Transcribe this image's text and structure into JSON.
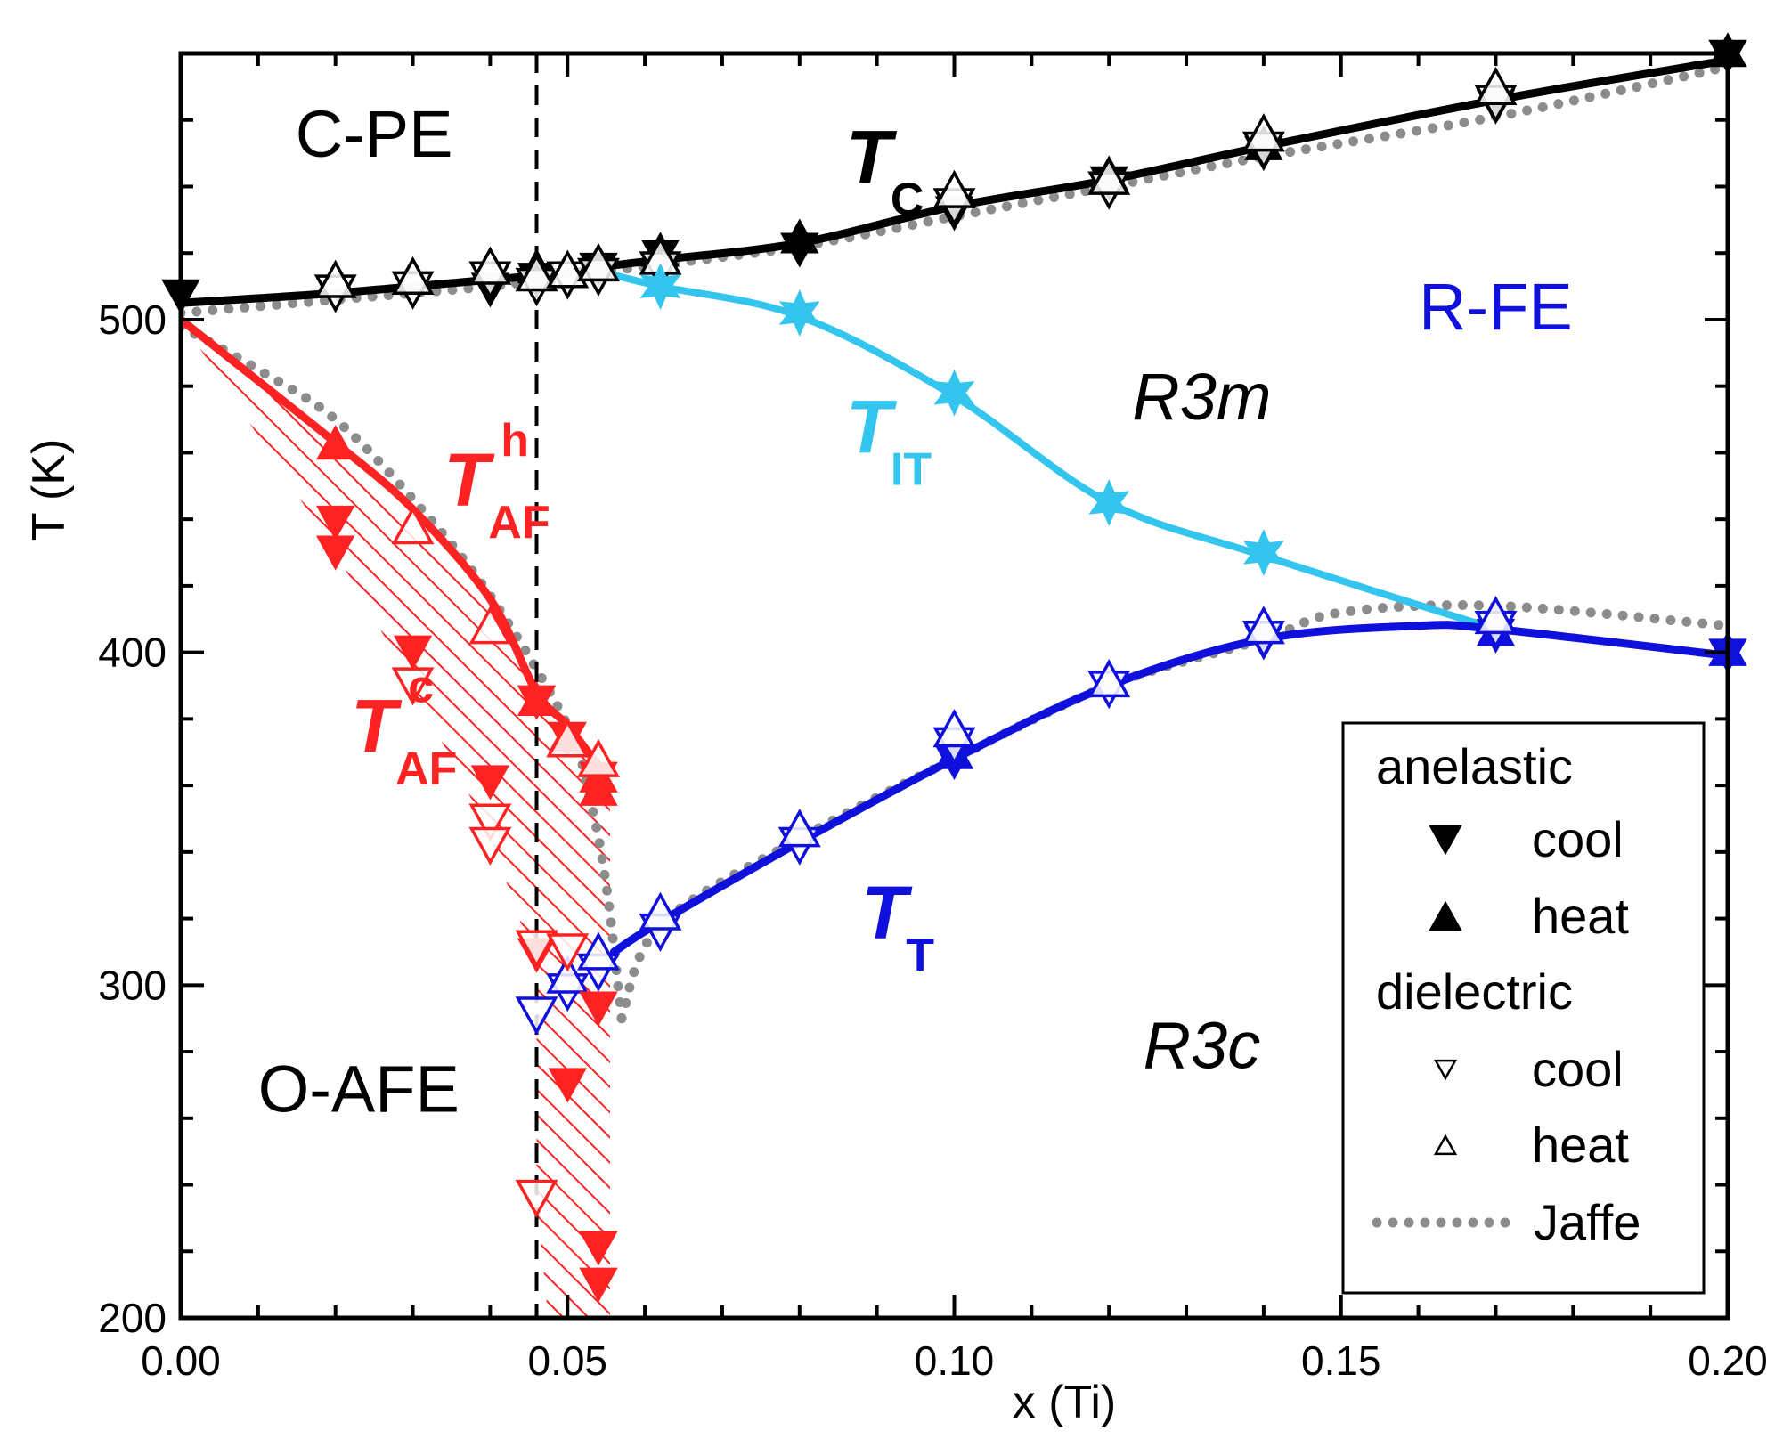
{
  "chart_data": {
    "type": "scatter",
    "xlabel": "x (Ti)",
    "ylabel": "T (K)",
    "xlim": [
      0.0,
      0.2
    ],
    "ylim": [
      200,
      580
    ],
    "x_ticks": [
      "0.00",
      "0.05",
      "0.10",
      "0.15",
      "0.20"
    ],
    "y_ticks": [
      "200",
      "300",
      "400",
      "500"
    ],
    "vline_x": 0.046,
    "regions": [
      {
        "text": "C-PE",
        "x": 0.025,
        "y": 549,
        "color": "#000000",
        "italic": false
      },
      {
        "text": "R-FE",
        "x": 0.17,
        "y": 497,
        "color": "#1010dd",
        "italic": false
      },
      {
        "text": "R3m",
        "x": 0.132,
        "y": 470,
        "color": "#000000",
        "italic": true
      },
      {
        "text": "R3c",
        "x": 0.132,
        "y": 275,
        "color": "#000000",
        "italic": true
      },
      {
        "text": "O-AFE",
        "x": 0.023,
        "y": 262,
        "color": "#000000",
        "italic": false
      }
    ],
    "curve_labels": [
      {
        "main": "T",
        "sub": "C",
        "sup": "",
        "x": 0.086,
        "y": 541,
        "color": "#000000"
      },
      {
        "main": "T",
        "sub": "IT",
        "sup": "",
        "x": 0.086,
        "y": 460,
        "color": "#33c5ee"
      },
      {
        "main": "T",
        "sub": "T",
        "sup": "",
        "x": 0.088,
        "y": 314,
        "color": "#1010dd"
      },
      {
        "main": "T",
        "sub": "AF",
        "sup": "h",
        "x": 0.034,
        "y": 444,
        "color": "#ff2222"
      },
      {
        "main": "T",
        "sub": "AF",
        "sup": "c",
        "x": 0.022,
        "y": 370,
        "color": "#ff2222"
      }
    ],
    "series": [
      {
        "key": "Tc",
        "color": "#000000",
        "line": [
          [
            0.0,
            505
          ],
          [
            0.02,
            508
          ],
          [
            0.04,
            512
          ],
          [
            0.05,
            514
          ],
          [
            0.055,
            516
          ],
          [
            0.062,
            518
          ],
          [
            0.08,
            523
          ],
          [
            0.1,
            534
          ],
          [
            0.12,
            542
          ],
          [
            0.14,
            552
          ],
          [
            0.17,
            566
          ],
          [
            0.2,
            578
          ]
        ],
        "an_cool": [
          [
            0.0,
            507
          ],
          [
            0.04,
            509
          ],
          [
            0.046,
            512
          ],
          [
            0.054,
            515
          ],
          [
            0.062,
            519
          ],
          [
            0.08,
            521
          ],
          [
            0.1,
            532
          ],
          [
            0.12,
            541
          ],
          [
            0.14,
            550
          ],
          [
            0.17,
            564
          ],
          [
            0.2,
            579
          ]
        ],
        "an_heat": [
          [
            0.046,
            516
          ],
          [
            0.062,
            521
          ],
          [
            0.08,
            525
          ],
          [
            0.12,
            544
          ],
          [
            0.14,
            553
          ],
          [
            0.2,
            581
          ]
        ],
        "di_cool": [
          [
            0.02,
            508
          ],
          [
            0.03,
            509
          ],
          [
            0.04,
            512
          ],
          [
            0.046,
            510
          ],
          [
            0.05,
            512
          ],
          [
            0.054,
            513
          ],
          [
            0.062,
            515
          ],
          [
            0.1,
            534
          ],
          [
            0.12,
            539
          ],
          [
            0.14,
            551
          ],
          [
            0.17,
            565
          ]
        ],
        "di_heat": [
          [
            0.02,
            512
          ],
          [
            0.03,
            513
          ],
          [
            0.04,
            516
          ],
          [
            0.046,
            514
          ],
          [
            0.05,
            515
          ],
          [
            0.054,
            517
          ],
          [
            0.062,
            519
          ],
          [
            0.1,
            539
          ],
          [
            0.12,
            543
          ],
          [
            0.14,
            556
          ],
          [
            0.17,
            570
          ]
        ]
      },
      {
        "key": "TIT",
        "color": "#33c5ee",
        "line": [
          [
            0.055,
            514
          ],
          [
            0.062,
            510
          ],
          [
            0.08,
            501
          ],
          [
            0.1,
            477
          ],
          [
            0.12,
            445
          ],
          [
            0.14,
            429
          ],
          [
            0.17,
            407
          ]
        ],
        "stars": [
          [
            0.062,
            510
          ],
          [
            0.08,
            502
          ],
          [
            0.1,
            478
          ],
          [
            0.12,
            445
          ],
          [
            0.14,
            430
          ]
        ]
      },
      {
        "key": "TT",
        "color": "#1010dd",
        "line": [
          [
            0.056,
            310
          ],
          [
            0.062,
            319
          ],
          [
            0.08,
            343
          ],
          [
            0.1,
            368
          ],
          [
            0.12,
            390
          ],
          [
            0.14,
            404
          ],
          [
            0.16,
            408
          ],
          [
            0.17,
            407
          ],
          [
            0.2,
            399
          ]
        ],
        "an_cool": [
          [
            0.1,
            367
          ],
          [
            0.14,
            403
          ],
          [
            0.17,
            405
          ],
          [
            0.2,
            399
          ]
        ],
        "an_heat": [
          [
            0.1,
            370
          ],
          [
            0.17,
            407
          ],
          [
            0.2,
            401
          ]
        ],
        "di_cool": [
          [
            0.046,
            291
          ],
          [
            0.05,
            298
          ],
          [
            0.054,
            304
          ],
          [
            0.062,
            316
          ],
          [
            0.08,
            342
          ],
          [
            0.1,
            372
          ],
          [
            0.12,
            389
          ],
          [
            0.14,
            404
          ],
          [
            0.17,
            407
          ]
        ],
        "di_heat": [
          [
            0.05,
            303
          ],
          [
            0.054,
            310
          ],
          [
            0.062,
            322
          ],
          [
            0.08,
            347
          ],
          [
            0.1,
            377
          ],
          [
            0.12,
            392
          ],
          [
            0.14,
            408
          ],
          [
            0.17,
            411
          ]
        ]
      },
      {
        "key": "TAF",
        "color": "#ff2222",
        "line": [
          [
            0.0,
            500
          ],
          [
            0.02,
            463
          ],
          [
            0.03,
            443
          ],
          [
            0.04,
            416
          ],
          [
            0.046,
            388
          ],
          [
            0.05,
            378
          ],
          [
            0.054,
            366
          ],
          [
            0.055,
            364
          ]
        ],
        "an_cool": [
          [
            0.02,
            439
          ],
          [
            0.02,
            430
          ],
          [
            0.03,
            400
          ],
          [
            0.04,
            361
          ],
          [
            0.046,
            385
          ],
          [
            0.046,
            309
          ],
          [
            0.05,
            374
          ],
          [
            0.05,
            270
          ],
          [
            0.054,
            362
          ],
          [
            0.054,
            293
          ],
          [
            0.054,
            221
          ],
          [
            0.054,
            210
          ]
        ],
        "an_heat": [
          [
            0.02,
            463
          ],
          [
            0.046,
            386
          ],
          [
            0.05,
            375
          ],
          [
            0.054,
            359
          ],
          [
            0.054,
            363
          ]
        ],
        "di_cool": [
          [
            0.03,
            390
          ],
          [
            0.04,
            349
          ],
          [
            0.04,
            342
          ],
          [
            0.046,
            311
          ],
          [
            0.046,
            236
          ],
          [
            0.05,
            310
          ]
        ],
        "di_heat": [
          [
            0.03,
            438
          ],
          [
            0.04,
            408
          ],
          [
            0.05,
            374
          ],
          [
            0.054,
            368
          ]
        ]
      }
    ],
    "jaffe": [
      [
        0.0,
        502
      ],
      [
        0.02,
        506
      ],
      [
        0.04,
        510
      ],
      [
        0.05,
        513
      ],
      [
        0.06,
        516
      ],
      [
        0.08,
        522
      ],
      [
        0.1,
        531
      ],
      [
        0.12,
        540
      ],
      [
        0.14,
        549
      ],
      [
        0.17,
        561
      ],
      [
        0.2,
        576
      ]
    ],
    "jaffe_afe": [
      [
        0.0,
        498
      ],
      [
        0.01,
        485
      ],
      [
        0.02,
        470
      ],
      [
        0.03,
        446
      ],
      [
        0.04,
        417
      ],
      [
        0.05,
        378
      ],
      [
        0.053,
        355
      ],
      [
        0.055,
        330
      ],
      [
        0.057,
        290
      ]
    ],
    "jaffe_tt": [
      [
        0.057,
        290
      ],
      [
        0.062,
        318
      ],
      [
        0.08,
        344
      ],
      [
        0.1,
        368
      ],
      [
        0.12,
        390
      ],
      [
        0.14,
        404
      ],
      [
        0.15,
        412
      ],
      [
        0.17,
        414
      ],
      [
        0.2,
        408
      ]
    ],
    "hatch_region": {
      "upper": [
        [
          0.0,
          500
        ],
        [
          0.02,
          463
        ],
        [
          0.03,
          443
        ],
        [
          0.04,
          416
        ],
        [
          0.046,
          388
        ],
        [
          0.05,
          378
        ],
        [
          0.054,
          368
        ],
        [
          0.0555,
          364
        ]
      ],
      "lower": [
        [
          0.0555,
          200
        ],
        [
          0.0475,
          200
        ],
        [
          0.046,
          236
        ],
        [
          0.046,
          305
        ],
        [
          0.04,
          345
        ],
        [
          0.03,
          390
        ],
        [
          0.02,
          430
        ],
        [
          0.0,
          500
        ]
      ]
    },
    "legend": {
      "placement": "bottom-right",
      "entries": [
        {
          "text": "anelastic",
          "marker": "none"
        },
        {
          "text": "cool",
          "marker": "down-filled"
        },
        {
          "text": "heat",
          "marker": "up-filled"
        },
        {
          "text": "dielectric",
          "marker": "none"
        },
        {
          "text": "cool",
          "marker": "down-open"
        },
        {
          "text": "heat",
          "marker": "up-open"
        },
        {
          "text": "Jaffe",
          "marker": "dots"
        }
      ]
    }
  }
}
